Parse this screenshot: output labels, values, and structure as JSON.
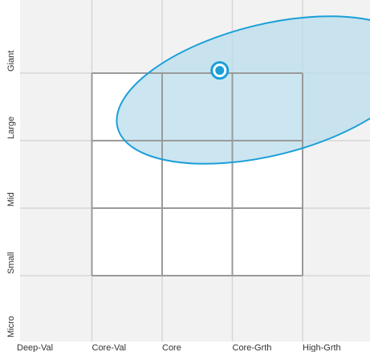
{
  "chart_data": {
    "type": "scatter",
    "title": "",
    "xlabel": "",
    "ylabel": "",
    "x_categories": [
      "Deep-Val",
      "Core-Val",
      "Core",
      "Core-Grth",
      "High-Grth"
    ],
    "y_categories": [
      "Micro",
      "Small",
      "Mid",
      "Large",
      "Giant"
    ],
    "grid": true,
    "style_box": {
      "x_range": [
        "Core-Val",
        "High-Grth"
      ],
      "y_range": [
        "Small",
        "Giant"
      ]
    },
    "series": [
      {
        "points": [
          {
            "x": "Core",
            "y": "Giant",
            "x_offset": 0.82,
            "y_offset": 0.04
          }
        ]
      }
    ],
    "ellipse": {
      "center_x": 3.5,
      "center_y": 3.75,
      "radius_x": 2.2,
      "radius_y": 0.97,
      "rotation_deg": -14
    },
    "colors": {
      "background": "#f2f2f2",
      "grid": "#d6d6d6",
      "box_fill": "#ffffff",
      "box_stroke": "#9a9a9a",
      "ellipse_fill": "#b9dcec",
      "ellipse_stroke": "#1a9fd8",
      "point": "#1a9fd8"
    }
  }
}
